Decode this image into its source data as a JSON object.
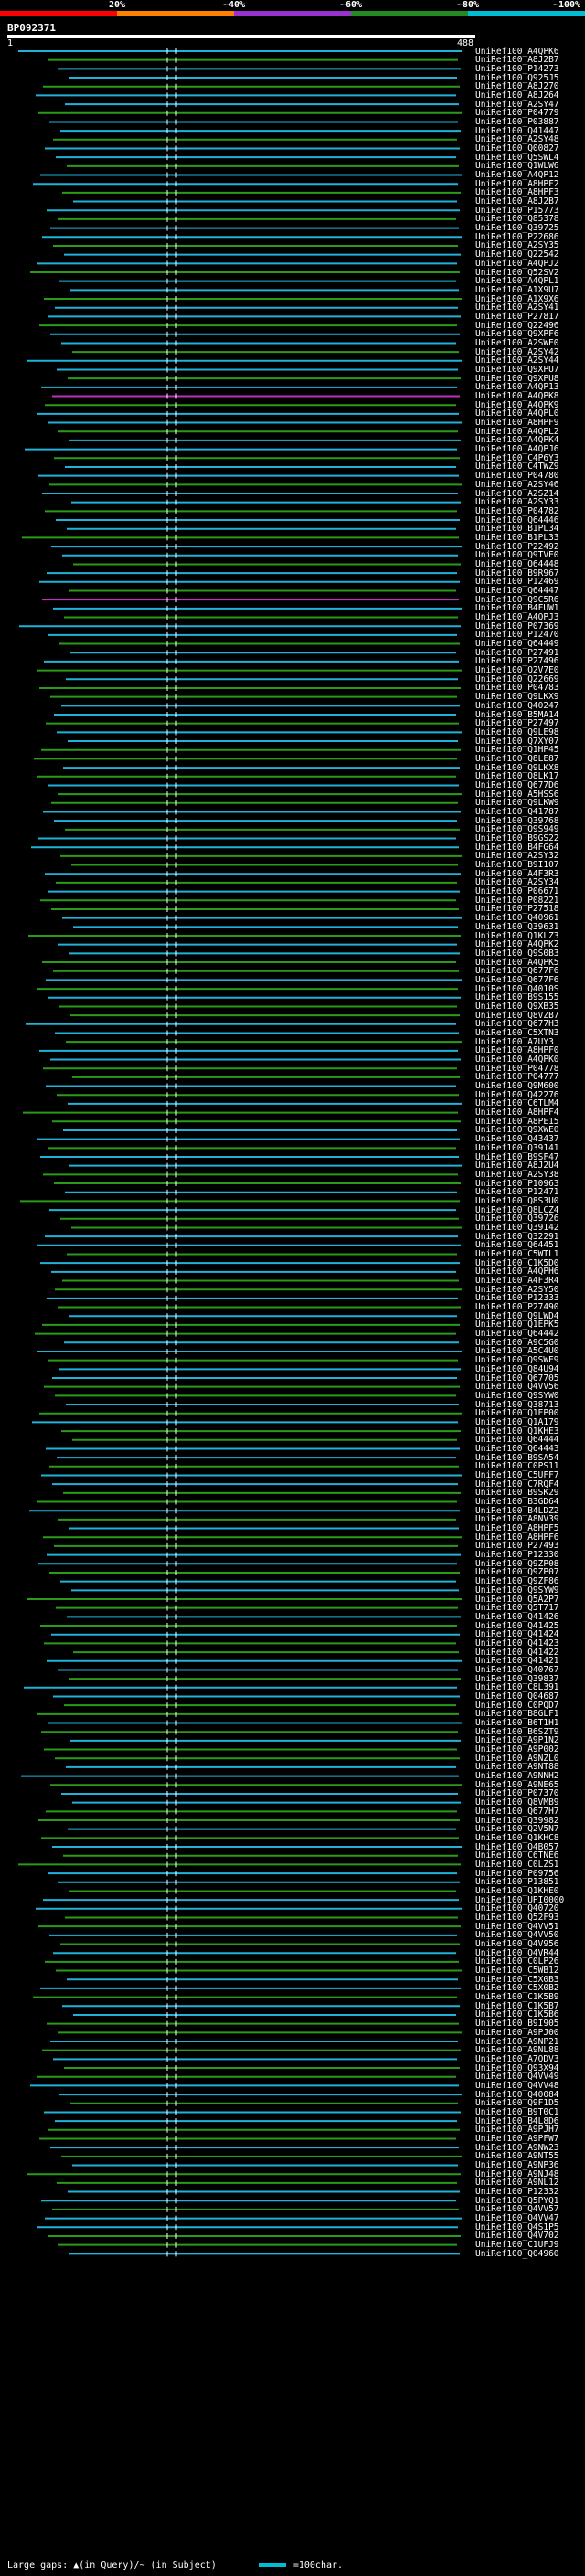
{
  "legend": {
    "segments": [
      {
        "label": "20%",
        "color": "#ff0000"
      },
      {
        "label": "~40%",
        "color": "#ff7f00"
      },
      {
        "label": "~60%",
        "color": "#9932cc"
      },
      {
        "label": "~80%",
        "color": "#228b22"
      },
      {
        "label": "~100%",
        "color": "#00bcd4"
      }
    ]
  },
  "query": {
    "title": "BP092371",
    "start": "1",
    "end": "488"
  },
  "colors": {
    "cyan": "#21b2d9",
    "green": "#2a9b18",
    "magenta": "#c030c0",
    "gap": "#ffffff"
  },
  "hits": [
    "UniRef100_A4QPK6",
    "UniRef100_A8J2B7",
    "UniRef100_P14273",
    "UniRef100_Q925J5",
    "UniRef100_A8J270",
    "UniRef100_A8J264",
    "UniRef100_A2SY47",
    "UniRef100_P04779",
    "UniRef100_P03887",
    "UniRef100_Q41447",
    "UniRef100_A2SY48",
    "UniRef100_Q00827",
    "UniRef100_Q5SWL4",
    "UniRef100_Q1WLW6",
    "UniRef100_A4QP12",
    "UniRef100_A8HPF2",
    "UniRef100_A8HPF3",
    "UniRef100_A8J2B7",
    "UniRef100_P15773",
    "UniRef100_Q85378",
    "UniRef100_Q39725",
    "UniRef100_P22686",
    "UniRef100_A2SY35",
    "UniRef100_Q22542",
    "UniRef100_A4QPJ2",
    "UniRef100_Q52SV2",
    "UniRef100_A4QPL1",
    "UniRef100_A1X9U7",
    "UniRef100_A1X9X6",
    "UniRef100_A2SY41",
    "UniRef100_P27817",
    "UniRef100_Q22496",
    "UniRef100_Q9XPF6",
    "UniRef100_A2SWE0",
    "UniRef100_A2SY42",
    "UniRef100_A2SY44",
    "UniRef100_Q9XPU7",
    "UniRef100_Q9XPU8",
    "UniRef100_A4QP13",
    "UniRef100_A4QPK8",
    "UniRef100_A4QPK9",
    "UniRef100_A4QPL0",
    "UniRef100_A8HPF9",
    "UniRef100_A4QPL2",
    "UniRef100_A4QPK4",
    "UniRef100_A4QPJ6",
    "UniRef100_C4P6Y3",
    "UniRef100_C4TWZ9",
    "UniRef100_P04780",
    "UniRef100_A2SY46",
    "UniRef100_A2SZ14",
    "UniRef100_A2SY33",
    "UniRef100_P04782",
    "UniRef100_Q64446",
    "UniRef100_B1PL34",
    "UniRef100_B1PL33",
    "UniRef100_P22492",
    "UniRef100_Q9TVE0",
    "UniRef100_Q64448",
    "UniRef100_B9R967",
    "UniRef100_P12469",
    "UniRef100_Q64447",
    "UniRef100_Q9C5R6",
    "UniRef100_B4FUW1",
    "UniRef100_A4QPJ3",
    "UniRef100_P07369",
    "UniRef100_P12470",
    "UniRef100_Q64449",
    "UniRef100_P27491",
    "UniRef100_P27496",
    "UniRef100_Q2V7E0",
    "UniRef100_Q22669",
    "UniRef100_P04783",
    "UniRef100_Q9LKX9",
    "UniRef100_Q40247",
    "UniRef100_B5MA14",
    "UniRef100_P27497",
    "UniRef100_Q9LE98",
    "UniRef100_Q7XY07",
    "UniRef100_Q1HP45",
    "UniRef100_Q8LE87",
    "UniRef100_Q9LKX8",
    "UniRef100_Q8LK17",
    "UniRef100_Q677D6",
    "UniRef100_A5HSS6",
    "UniRef100_Q9LKW9",
    "UniRef100_Q41787",
    "UniRef100_Q39768",
    "UniRef100_Q9S949",
    "UniRef100_B9GS22",
    "UniRef100_B4FG64",
    "UniRef100_A2SY32",
    "UniRef100_B9I107",
    "UniRef100_A4F3R3",
    "UniRef100_A2SY34",
    "UniRef100_P06671",
    "UniRef100_P08221",
    "UniRef100_P27518",
    "UniRef100_Q40961",
    "UniRef100_Q39631",
    "UniRef100_Q1KLZ3",
    "UniRef100_A4QPK2",
    "UniRef100_Q9S0B3",
    "UniRef100_A4QPK5",
    "UniRef100_Q677F6",
    "UniRef100_Q677F6",
    "UniRef100_Q4010S",
    "UniRef100_B9S155",
    "UniRef100_Q9XB35",
    "UniRef100_Q8VZB7",
    "UniRef100_Q677H3",
    "UniRef100_C5XTN3",
    "UniRef100_A7UY3",
    "UniRef100_A8HPF0",
    "UniRef100_A4QPK0",
    "UniRef100_P04778",
    "UniRef100_P04777",
    "UniRef100_Q9M600",
    "UniRef100_Q42276",
    "UniRef100_C6TLM4",
    "UniRef100_A8HPF4",
    "UniRef100_A8PE15",
    "UniRef100_Q9XWE0",
    "UniRef100_Q43437",
    "UniRef100_Q39141",
    "UniRef100_B9SF47",
    "UniRef100_A8J2U4",
    "UniRef100_A2SY38",
    "UniRef100_P10963",
    "UniRef100_P12471",
    "UniRef100_Q8S3U0",
    "UniRef100_Q8LCZ4",
    "UniRef100_Q39726",
    "UniRef100_Q39142",
    "UniRef100_Q32291",
    "UniRef100_Q64451",
    "UniRef100_C5WTL1",
    "UniRef100_C1K5D0",
    "UniRef100_A4QPH6",
    "UniRef100_A4F3R4",
    "UniRef100_A2SY50",
    "UniRef100_P12333",
    "UniRef100_P27490",
    "UniRef100_Q9LWD4",
    "UniRef100_Q1EPK5",
    "UniRef100_Q64442",
    "UniRef100_A9C5G0",
    "UniRef100_A5C4U0",
    "UniRef100_Q9SWE9",
    "UniRef100_Q84U94",
    "UniRef100_Q67705",
    "UniRef100_Q4VV56",
    "UniRef100_Q9SYW0",
    "UniRef100_Q38713",
    "UniRef100_Q1EP00",
    "UniRef100_Q1A179",
    "UniRef100_Q1KHE3",
    "UniRef100_Q64444",
    "UniRef100_Q64443",
    "UniRef100_B9SA54",
    "UniRef100_C0PS11",
    "UniRef100_C5UFF7",
    "UniRef100_C7RQF4",
    "UniRef100_B9SK29",
    "UniRef100_B3GD64",
    "UniRef100_B4LDZ2",
    "UniRef100_A8NV39",
    "UniRef100_A8HPF5",
    "UniRef100_A8HPF6",
    "UniRef100_P27493",
    "UniRef100_P12330",
    "UniRef100_Q9ZP08",
    "UniRef100_Q9ZP07",
    "UniRef100_Q9ZF86",
    "UniRef100_Q9SYW9",
    "UniRef100_Q5A2P7",
    "UniRef100_Q5T717",
    "UniRef100_Q41426",
    "UniRef100_Q41425",
    "UniRef100_Q41424",
    "UniRef100_Q41423",
    "UniRef100_Q41422",
    "UniRef100_Q41421",
    "UniRef100_Q40767",
    "UniRef100_Q39837",
    "UniRef100_C8L391",
    "UniRef100_Q04687",
    "UniRef100_C0PQD7",
    "UniRef100_B8GLF1",
    "UniRef100_B6T1H1",
    "UniRef100_B6SZT9",
    "UniRef100_A9P1N2",
    "UniRef100_A9P002",
    "UniRef100_A9NZL0",
    "UniRef100_A9NT88",
    "UniRef100_A9NNH2",
    "UniRef100_A9NE65",
    "UniRef100_P07370",
    "UniRef100_Q8VMB9",
    "UniRef100_Q677H7",
    "UniRef100_Q39982",
    "UniRef100_Q2V5N7",
    "UniRef100_Q1KHC8",
    "UniRef100_Q4B057",
    "UniRef100_C6TNE6",
    "UniRef100_C0LZS1",
    "UniRef100_P09756",
    "UniRef100_P13851",
    "UniRef100_Q1KHE0",
    "UniRef100_UPI0000",
    "UniRef100_Q40720",
    "UniRef100_Q52F93",
    "UniRef100_Q4VV51",
    "UniRef100_Q4VV50",
    "UniRef100_Q4V956",
    "UniRef100_Q4VR44",
    "UniRef100_C0LP26",
    "UniRef100_C5WB12",
    "UniRef100_C5X0B3",
    "UniRef100_C5X0B2",
    "UniRef100_C1K5B9",
    "UniRef100_C1K5B7",
    "UniRef100_C1K5B6",
    "UniRef100_B9I905",
    "UniRef100_A9PJ00",
    "UniRef100_A9NP21",
    "UniRef100_A9NL88",
    "UniRef100_A7QDV3",
    "UniRef100_Q93X94",
    "UniRef100_Q4VV49",
    "UniRef100_Q4VV48",
    "UniRef100_Q40084",
    "UniRef100_Q9F1D5",
    "UniRef100_B9T0C1",
    "UniRef100_B4L8D6",
    "UniRef100_A9PJH7",
    "UniRef100_A9PFW7",
    "UniRef100_A9NW23",
    "UniRef100_A9NT55",
    "UniRef100_A9NP36",
    "UniRef100_A9NJ48",
    "UniRef100_A9NL12",
    "UniRef100_P12332",
    "UniRef100_Q5PYQ1",
    "UniRef100_Q4VV57",
    "UniRef100_Q4VV47",
    "UniRef100_Q4S1P5",
    "UniRef100_Q4V702",
    "UniRef100_C1UFJ9",
    "UniRef100_Q04960"
  ],
  "footer": {
    "gaps_text": "Large gaps: ▲(in Query)/~ (in Subject)",
    "scale_text": "=100char."
  }
}
